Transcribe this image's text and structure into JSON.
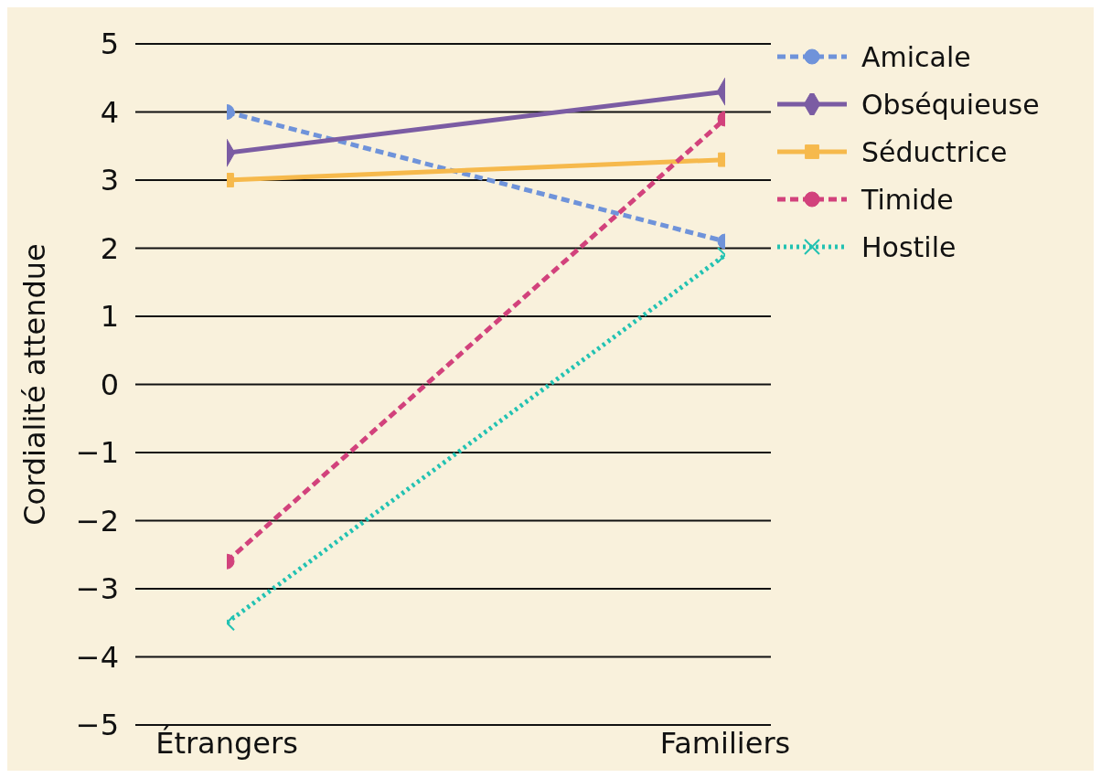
{
  "chart_data": {
    "type": "line",
    "ylabel": "Cordialité attendue",
    "categories": [
      "Étrangers",
      "Familiers"
    ],
    "ylim": [
      -5,
      5
    ],
    "yticks": [
      -5,
      -4,
      -3,
      -2,
      -1,
      0,
      1,
      2,
      3,
      4,
      5
    ],
    "grid": "y",
    "legend": "top right",
    "series": [
      {
        "name": "Amicale",
        "color": "#6f93da",
        "values": [
          4.0,
          2.1
        ],
        "marker": "circle",
        "line_style": "dashed"
      },
      {
        "name": "Obséquieuse",
        "color": "#7b5ca3",
        "values": [
          3.4,
          4.3
        ],
        "marker": "diamond",
        "line_style": "solid"
      },
      {
        "name": "Séductrice",
        "color": "#f6b94c",
        "values": [
          3.0,
          3.3
        ],
        "marker": "square",
        "line_style": "solid"
      },
      {
        "name": "Timide",
        "color": "#d2427c",
        "values": [
          -2.6,
          3.9
        ],
        "marker": "circle",
        "line_style": "dashed"
      },
      {
        "name": "Hostile",
        "color": "#22c2b2",
        "values": [
          -3.5,
          1.9
        ],
        "marker": "cross",
        "line_style": "dotted"
      }
    ]
  }
}
